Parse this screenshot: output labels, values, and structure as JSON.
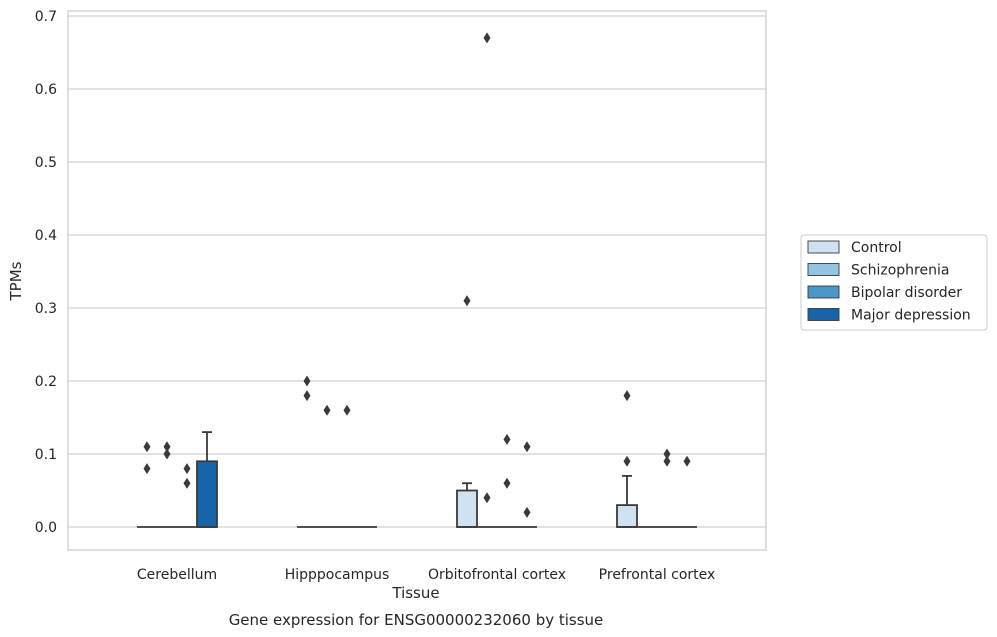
{
  "chart_data": {
    "type": "box",
    "xlabel": "Tissue",
    "ylabel": "TPMs",
    "caption": "Gene expression for ENSG00000232060 by tissue",
    "categories": [
      "Cerebellum",
      "Hipppocampus",
      "Orbitofrontal cortex",
      "Prefrontal cortex"
    ],
    "ylim": [
      -0.033,
      0.705
    ],
    "yticks": [
      0.0,
      0.1,
      0.2,
      0.3,
      0.4,
      0.5,
      0.6,
      0.7
    ],
    "ytick_labels": [
      "0.0",
      "0.1",
      "0.2",
      "0.3",
      "0.4",
      "0.5",
      "0.6",
      "0.7"
    ],
    "grid": true,
    "legend_position": "right",
    "series": [
      {
        "name": "Control",
        "color": "#d0e1f2"
      },
      {
        "name": "Schizophrenia",
        "color": "#94c4df"
      },
      {
        "name": "Bipolar disorder",
        "color": "#4a98c9"
      },
      {
        "name": "Major depression",
        "color": "#1764ab"
      }
    ],
    "boxes": [
      {
        "category": "Cerebellum",
        "series": "Control",
        "q1": 0.0,
        "median": 0.0,
        "q3": 0.0,
        "whisker_low": 0.0,
        "whisker_high": 0.0,
        "outliers": [
          0.11,
          0.08
        ]
      },
      {
        "category": "Cerebellum",
        "series": "Schizophrenia",
        "q1": 0.0,
        "median": 0.0,
        "q3": 0.0,
        "whisker_low": 0.0,
        "whisker_high": 0.0,
        "outliers": [
          0.11,
          0.1
        ]
      },
      {
        "category": "Cerebellum",
        "series": "Bipolar disorder",
        "q1": 0.0,
        "median": 0.0,
        "q3": 0.0,
        "whisker_low": 0.0,
        "whisker_high": 0.0,
        "outliers": [
          0.08,
          0.06
        ]
      },
      {
        "category": "Cerebellum",
        "series": "Major depression",
        "q1": 0.0,
        "median": 0.0,
        "q3": 0.09,
        "whisker_low": 0.0,
        "whisker_high": 0.13,
        "outliers": []
      },
      {
        "category": "Hipppocampus",
        "series": "Control",
        "q1": 0.0,
        "median": 0.0,
        "q3": 0.0,
        "whisker_low": 0.0,
        "whisker_high": 0.0,
        "outliers": [
          0.2,
          0.18
        ]
      },
      {
        "category": "Hipppocampus",
        "series": "Schizophrenia",
        "q1": 0.0,
        "median": 0.0,
        "q3": 0.0,
        "whisker_low": 0.0,
        "whisker_high": 0.0,
        "outliers": [
          0.16
        ]
      },
      {
        "category": "Hipppocampus",
        "series": "Bipolar disorder",
        "q1": 0.0,
        "median": 0.0,
        "q3": 0.0,
        "whisker_low": 0.0,
        "whisker_high": 0.0,
        "outliers": [
          0.16
        ]
      },
      {
        "category": "Hipppocampus",
        "series": "Major depression",
        "q1": 0.0,
        "median": 0.0,
        "q3": 0.0,
        "whisker_low": 0.0,
        "whisker_high": 0.0,
        "outliers": []
      },
      {
        "category": "Orbitofrontal cortex",
        "series": "Control",
        "q1": 0.0,
        "median": 0.0,
        "q3": 0.05,
        "whisker_low": 0.0,
        "whisker_high": 0.06,
        "outliers": [
          0.31
        ]
      },
      {
        "category": "Orbitofrontal cortex",
        "series": "Schizophrenia",
        "q1": 0.0,
        "median": 0.0,
        "q3": 0.0,
        "whisker_low": 0.0,
        "whisker_high": 0.0,
        "outliers": [
          0.67,
          0.04
        ]
      },
      {
        "category": "Orbitofrontal cortex",
        "series": "Bipolar disorder",
        "q1": 0.0,
        "median": 0.0,
        "q3": 0.0,
        "whisker_low": 0.0,
        "whisker_high": 0.0,
        "outliers": [
          0.12,
          0.06
        ]
      },
      {
        "category": "Orbitofrontal cortex",
        "series": "Major depression",
        "q1": 0.0,
        "median": 0.0,
        "q3": 0.0,
        "whisker_low": 0.0,
        "whisker_high": 0.0,
        "outliers": [
          0.11,
          0.02
        ]
      },
      {
        "category": "Prefrontal cortex",
        "series": "Control",
        "q1": 0.0,
        "median": 0.0,
        "q3": 0.03,
        "whisker_low": 0.0,
        "whisker_high": 0.07,
        "outliers": [
          0.18,
          0.09
        ]
      },
      {
        "category": "Prefrontal cortex",
        "series": "Schizophrenia",
        "q1": 0.0,
        "median": 0.0,
        "q3": 0.0,
        "whisker_low": 0.0,
        "whisker_high": 0.0,
        "outliers": []
      },
      {
        "category": "Prefrontal cortex",
        "series": "Bipolar disorder",
        "q1": 0.0,
        "median": 0.0,
        "q3": 0.0,
        "whisker_low": 0.0,
        "whisker_high": 0.0,
        "outliers": [
          0.1,
          0.09
        ]
      },
      {
        "category": "Prefrontal cortex",
        "series": "Major depression",
        "q1": 0.0,
        "median": 0.0,
        "q3": 0.0,
        "whisker_low": 0.0,
        "whisker_high": 0.0,
        "outliers": [
          0.09
        ]
      }
    ]
  }
}
